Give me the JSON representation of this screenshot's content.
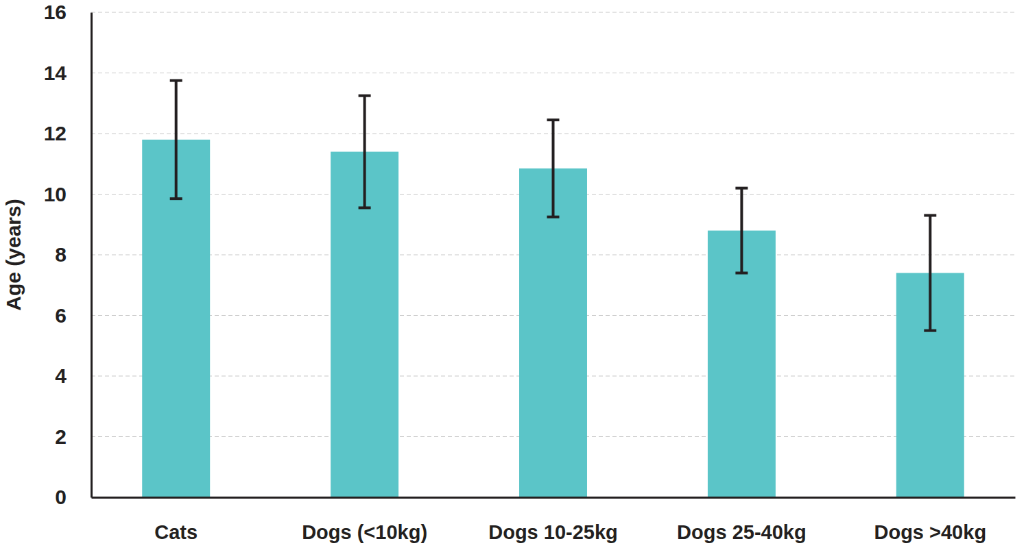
{
  "chart_data": {
    "type": "bar",
    "y_label": "Age (years)",
    "categories": [
      "Cats",
      "Dogs (<10kg)",
      "Dogs 10-25kg",
      "Dogs 25-40kg",
      "Dogs >40kg"
    ],
    "values": [
      11.8,
      11.4,
      10.85,
      8.8,
      7.4
    ],
    "error": [
      1.95,
      1.85,
      1.6,
      1.4,
      1.9
    ],
    "color": "#5bc5c8",
    "ylim": [
      0,
      16
    ],
    "yticks": [
      0,
      2,
      4,
      6,
      8,
      10,
      12,
      14,
      16
    ],
    "grid": true
  }
}
